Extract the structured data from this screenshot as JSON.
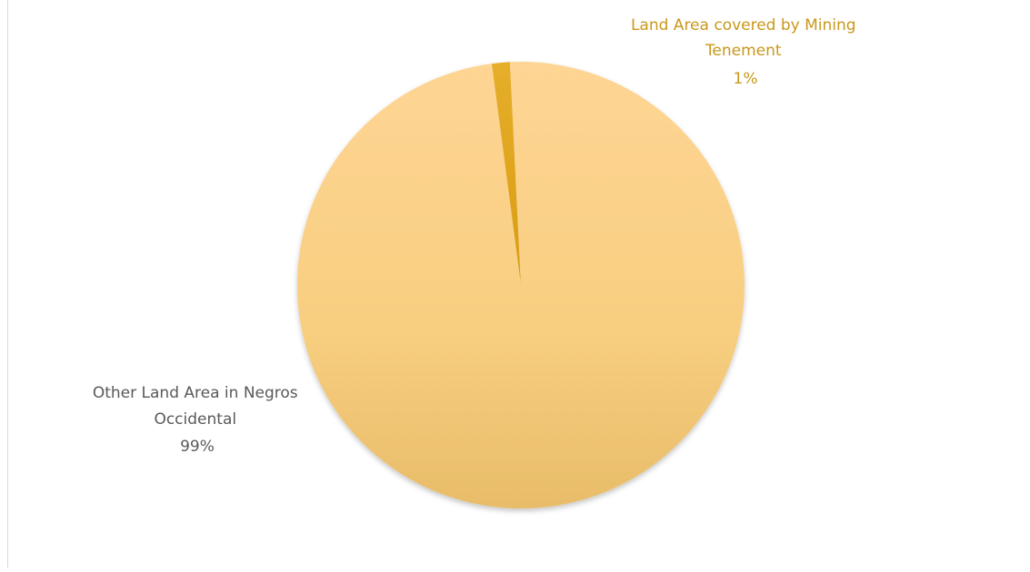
{
  "chart_data": {
    "type": "pie",
    "title": "",
    "slices": [
      {
        "label_lines": [
          "Land Area covered by Mining",
          "Tenement"
        ],
        "percent_label": "1%",
        "value": 1.3,
        "color": "#e9b020",
        "label_color": "#c9981a"
      },
      {
        "label_lines": [
          "Other Land Area in Negros",
          "Occidental"
        ],
        "percent_label": "99%",
        "value": 98.7,
        "color": "#fdd28a",
        "label_color": "#595959"
      }
    ],
    "start_angle_deg": -7.5,
    "direction": "clockwise",
    "legend": "none",
    "data_labels": "outside"
  }
}
